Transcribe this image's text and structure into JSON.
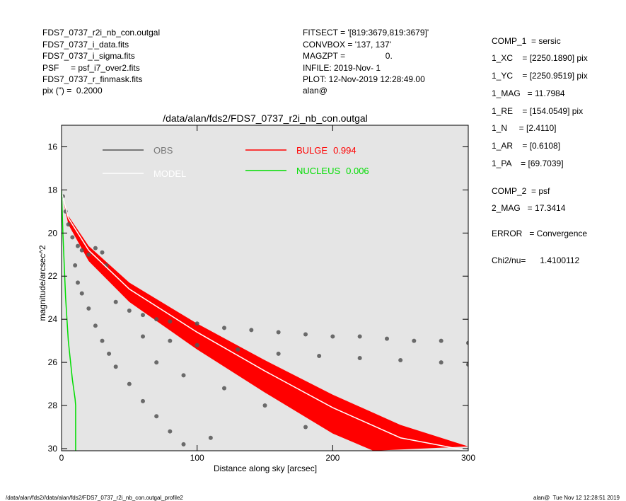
{
  "header": {
    "left": [
      "FDS7_0737_r2i_nb_con.outgal",
      "FDS7_0737_i_data.fits",
      "FDS7_0737_i_sigma.fits",
      "PSF     = psf_i7_over2.fits",
      "FDS7_0737_r_finmask.fits",
      "pix (\") =  0.2000"
    ],
    "middle": [
      "FITSECT = '[819:3679,819:3679]'",
      "CONVBOX = '137, 137'",
      "MAGZPT =                 0.",
      "INFILE: 2019-Nov- 1",
      "PLOT: 12-Nov-2019 12:28:49.00",
      "alan@"
    ],
    "right": [
      "COMP_1  = sersic",
      "1_XC    = [2250.1890] pix",
      "1_YC    = [2250.9519] pix",
      "1_MAG   = 11.7984",
      "1_RE    = [154.0549] pix",
      "1_N     = [2.4110]",
      "1_AR    = [0.6108]",
      "1_PA    = [69.7039]",
      "COMP_2  = psf",
      "2_MAG   = 17.3414",
      "ERROR   = Convergence",
      "Chi2/nu=      1.4100112"
    ]
  },
  "footer": {
    "left": "/data/alan/fds2//data/alan/fds2/FDS7_0737_r2i_nb_con.outgal_profile2",
    "right": "alan@  Tue Nov 12 12:28:51 2019"
  },
  "chart_data": {
    "type": "scatter",
    "title": "/data/alan/fds2/FDS7_0737_r2i_nb_con.outgal",
    "xlabel": "Distance along sky [arcsec]",
    "ylabel": "magnitude/arcsec^2",
    "xlim": [
      0,
      300
    ],
    "xticks": [
      0,
      100,
      200,
      300
    ],
    "ylim": [
      30.1,
      15
    ],
    "yticks": [
      16,
      18,
      20,
      22,
      24,
      26,
      28,
      30
    ],
    "background": "#e5e5e5",
    "series": [
      {
        "name": "OBS",
        "color": "#555555",
        "kind": "points",
        "x": [
          1,
          3,
          5,
          8,
          12,
          15,
          20,
          25,
          30,
          33,
          10,
          12,
          15,
          20,
          25,
          30,
          35,
          40,
          50,
          60,
          70,
          80,
          90,
          40,
          50,
          60,
          70,
          80,
          100,
          120,
          140,
          160,
          180,
          200,
          220,
          240,
          260,
          280,
          300,
          60,
          80,
          100,
          130,
          160,
          190,
          220,
          250,
          280,
          300,
          70,
          90,
          120,
          150,
          180,
          110
        ],
        "values": [
          18.3,
          19.0,
          19.6,
          20.2,
          20.6,
          20.8,
          21.0,
          20.7,
          20.9,
          21.5,
          21.5,
          22.3,
          22.8,
          23.5,
          24.3,
          25.0,
          25.6,
          26.2,
          27.0,
          27.8,
          28.5,
          29.2,
          29.8,
          23.2,
          23.6,
          23.8,
          24.0,
          24.1,
          24.2,
          24.4,
          24.5,
          24.6,
          24.7,
          24.8,
          24.8,
          24.9,
          25.0,
          25.0,
          25.1,
          24.8,
          25.0,
          25.2,
          25.4,
          25.6,
          25.7,
          25.8,
          25.9,
          26.0,
          26.1,
          26.0,
          26.6,
          27.2,
          28.0,
          29.0,
          29.5
        ]
      },
      {
        "name": "MODEL",
        "color": "#ffffff",
        "kind": "line",
        "x": [
          0,
          5,
          20,
          50,
          100,
          150,
          200,
          250,
          300
        ],
        "values": [
          18.1,
          19.3,
          20.8,
          22.6,
          24.6,
          26.4,
          28.1,
          29.5,
          30.1
        ]
      },
      {
        "name": "BULGE",
        "fraction": 0.994,
        "color": "#ff0000",
        "kind": "band",
        "edges": [
          {
            "x": [
              0,
              5,
              20,
              50,
              100,
              150,
              200,
              250,
              300
            ],
            "values": [
              18.1,
              19.2,
              20.6,
              22.3,
              24.2,
              25.9,
              27.5,
              28.9,
              29.9
            ]
          },
          {
            "x": [
              0,
              5,
              20,
              50,
              100,
              150,
              200,
              230
            ],
            "values": [
              18.1,
              19.6,
              21.3,
              23.2,
              25.4,
              27.4,
              29.3,
              30.1
            ]
          }
        ]
      },
      {
        "name": "NUCLEUS",
        "fraction": 0.006,
        "color": "#00dd00",
        "kind": "line",
        "x": [
          0,
          1,
          3,
          5,
          8,
          10,
          10.4,
          10.4
        ],
        "values": [
          18.0,
          20.0,
          23.0,
          25.0,
          26.8,
          27.7,
          28.0,
          30.1
        ]
      }
    ]
  }
}
